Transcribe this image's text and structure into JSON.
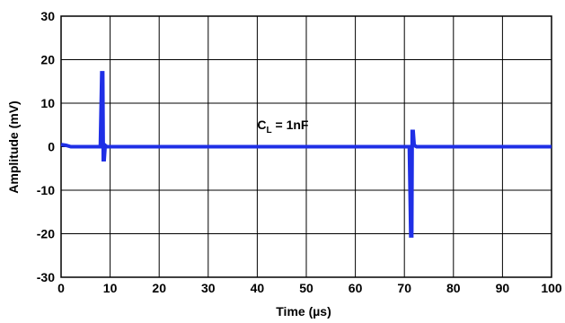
{
  "chart_data": {
    "type": "line",
    "title": "",
    "xlabel": "Time (µs)",
    "ylabel": "Amplitude (mV)",
    "xlim": [
      0,
      100
    ],
    "ylim": [
      -30,
      30
    ],
    "xticks": [
      0,
      10,
      20,
      30,
      40,
      50,
      60,
      70,
      80,
      90,
      100
    ],
    "yticks": [
      -30,
      -20,
      -10,
      0,
      10,
      20,
      30
    ],
    "grid": true,
    "legend": "none",
    "annotation": {
      "main": "C",
      "sub": "L",
      "rest": " = 1nF",
      "x": 40,
      "y": 4
    },
    "series": [
      {
        "color": "#1f2fe6",
        "x": [
          0,
          1,
          2,
          3,
          4,
          5,
          6,
          7,
          8.0,
          8.3,
          8.5,
          8.6,
          8.8,
          9.0,
          9.3,
          10,
          12,
          20,
          30,
          40,
          50,
          60,
          70,
          71.0,
          71.3,
          71.5,
          71.6,
          71.8,
          72.0,
          72.5,
          73,
          80,
          90,
          100
        ],
        "y": [
          0.5,
          0.3,
          0,
          0,
          0,
          0,
          0,
          0,
          0,
          17,
          17,
          -3,
          -3,
          0.3,
          0,
          0,
          0,
          0,
          0,
          0,
          0,
          0,
          0,
          0,
          -20.5,
          -20.5,
          3.5,
          3.5,
          0.3,
          0,
          0,
          0,
          0,
          0
        ]
      }
    ]
  }
}
